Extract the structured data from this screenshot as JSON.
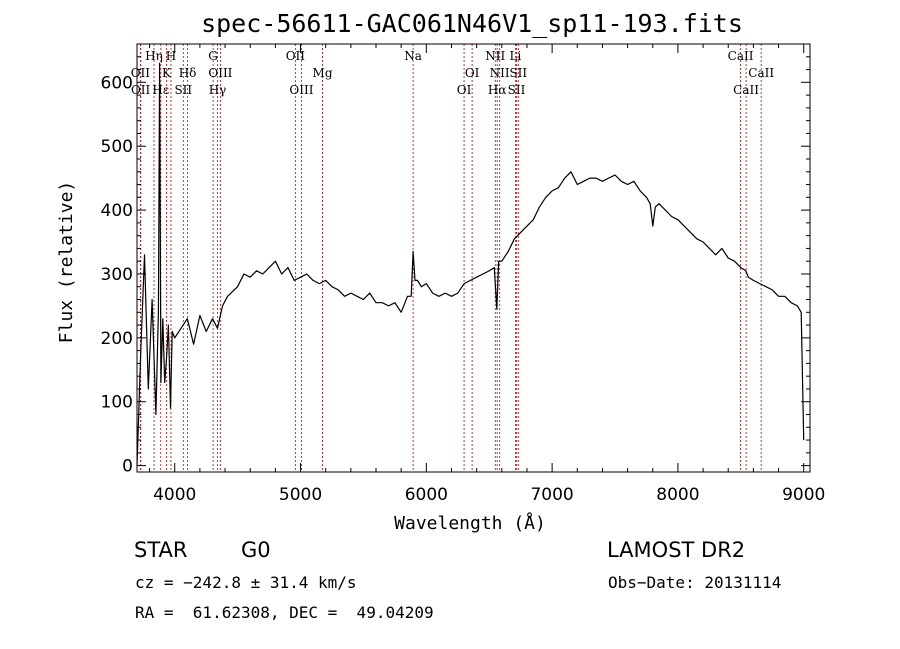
{
  "chart_data": {
    "type": "line",
    "title": "spec-56611-GAC061N46V1_sp11-193.fits",
    "xlabel": "Wavelength (Å)",
    "ylabel": "Flux (relative)",
    "xlim": [
      3700,
      9050
    ],
    "ylim": [
      -10,
      660
    ],
    "xticks": [
      4000,
      5000,
      6000,
      7000,
      8000,
      9000
    ],
    "yticks": [
      0,
      100,
      200,
      300,
      400,
      500,
      600
    ],
    "grid": false,
    "series": [
      {
        "x": [
          3700,
          3730,
          3760,
          3790,
          3820,
          3850,
          3870,
          3880,
          3890,
          3905,
          3920,
          3935,
          3950,
          3966,
          3980,
          4000,
          4050,
          4100,
          4150,
          4200,
          4250,
          4300,
          4340,
          4380,
          4420,
          4500,
          4550,
          4600,
          4650,
          4700,
          4750,
          4800,
          4850,
          4900,
          4950,
          5000,
          5050,
          5100,
          5150,
          5200,
          5250,
          5300,
          5350,
          5400,
          5450,
          5500,
          5550,
          5600,
          5650,
          5700,
          5750,
          5800,
          5850,
          5880,
          5895,
          5910,
          5930,
          5960,
          6000,
          6050,
          6100,
          6150,
          6200,
          6250,
          6300,
          6350,
          6400,
          6450,
          6500,
          6540,
          6560,
          6575,
          6600,
          6650,
          6700,
          6750,
          6800,
          6850,
          6900,
          6950,
          7000,
          7050,
          7100,
          7150,
          7200,
          7250,
          7300,
          7350,
          7400,
          7450,
          7500,
          7550,
          7600,
          7650,
          7700,
          7750,
          7780,
          7800,
          7820,
          7850,
          7900,
          7950,
          8000,
          8050,
          8100,
          8150,
          8200,
          8250,
          8300,
          8350,
          8400,
          8450,
          8500,
          8540,
          8560,
          8600,
          8650,
          8700,
          8750,
          8800,
          8850,
          8900,
          8950,
          8980,
          9000
        ],
        "values": [
          0,
          180,
          330,
          120,
          260,
          80,
          240,
          630,
          130,
          230,
          130,
          170,
          220,
          90,
          210,
          200,
          215,
          230,
          190,
          235,
          210,
          230,
          215,
          250,
          265,
          280,
          300,
          295,
          305,
          300,
          310,
          320,
          300,
          310,
          290,
          295,
          300,
          290,
          285,
          290,
          280,
          275,
          265,
          270,
          265,
          260,
          270,
          255,
          255,
          250,
          255,
          240,
          265,
          265,
          335,
          290,
          290,
          280,
          285,
          270,
          265,
          270,
          265,
          270,
          285,
          290,
          295,
          300,
          305,
          310,
          245,
          320,
          320,
          335,
          355,
          365,
          375,
          385,
          405,
          420,
          430,
          435,
          450,
          460,
          440,
          445,
          450,
          450,
          445,
          450,
          455,
          445,
          440,
          445,
          430,
          420,
          410,
          375,
          405,
          410,
          400,
          390,
          385,
          375,
          365,
          355,
          350,
          340,
          330,
          340,
          325,
          320,
          310,
          305,
          295,
          290,
          285,
          280,
          275,
          265,
          265,
          255,
          250,
          240,
          40
        ]
      }
    ],
    "line_markers": [
      {
        "label": "Hη",
        "x": 3835,
        "row": 0
      },
      {
        "label": "H",
        "x": 3970,
        "row": 0
      },
      {
        "label": "G",
        "x": 4305,
        "row": 0
      },
      {
        "label": "OII",
        "x": 4959,
        "row": 0
      },
      {
        "label": "Na",
        "x": 5895,
        "row": 0
      },
      {
        "label": "NII",
        "x": 6548,
        "row": 0
      },
      {
        "label": "Li",
        "x": 6708,
        "row": 0
      },
      {
        "label": "CaII",
        "x": 8498,
        "row": 0
      },
      {
        "label": "OII",
        "x": 3727,
        "row": 1
      },
      {
        "label": "K",
        "x": 3934,
        "row": 1
      },
      {
        "label": "Hδ",
        "x": 4102,
        "row": 1
      },
      {
        "label": "OIII",
        "x": 4363,
        "row": 1
      },
      {
        "label": "Mg",
        "x": 5175,
        "row": 1
      },
      {
        "label": "OI",
        "x": 6364,
        "row": 1
      },
      {
        "label": "NII",
        "x": 6583,
        "row": 1
      },
      {
        "label": "SII",
        "x": 6731,
        "row": 1
      },
      {
        "label": "CaII",
        "x": 8662,
        "row": 1
      },
      {
        "label": "OII",
        "x": 3729,
        "row": 2
      },
      {
        "label": "Hε",
        "x": 3889,
        "row": 2
      },
      {
        "label": "SII",
        "x": 4068,
        "row": 2
      },
      {
        "label": "Hγ",
        "x": 4340,
        "row": 2
      },
      {
        "label": "OIII",
        "x": 5007,
        "row": 2
      },
      {
        "label": "OI",
        "x": 6300,
        "row": 2
      },
      {
        "label": "Hα",
        "x": 6563,
        "row": 2
      },
      {
        "label": "SII",
        "x": 6717,
        "row": 2
      },
      {
        "label": "CaII",
        "x": 8542,
        "row": 2
      }
    ]
  },
  "info": {
    "object_class": "STAR",
    "subclass": "G0",
    "survey": "LAMOST DR2",
    "redshift_line": "cz = −242.8 ± 31.4 km/s",
    "obs_date_line": "Obs−Date: 20131114",
    "coords_line": "RA =  61.62308, DEC =  49.04209"
  }
}
